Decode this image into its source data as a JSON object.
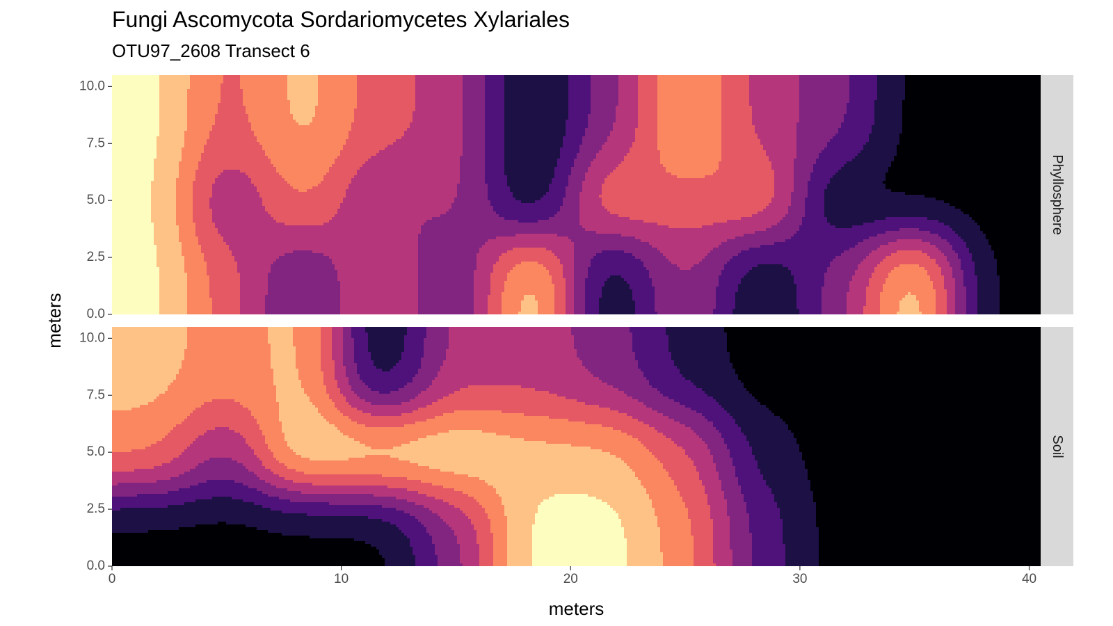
{
  "chart_data": {
    "type": "heatmap",
    "title": "Fungi Ascomycota Sordariomycetes Xylariales",
    "subtitle": "OTU97_2608 Transect 6",
    "xlabel": "meters",
    "ylabel": "meters",
    "xlim": [
      0,
      40.5
    ],
    "ylim": [
      0,
      10.5
    ],
    "x_ticks": [
      0,
      10,
      20,
      30,
      40
    ],
    "x_tick_labels": [
      "0",
      "10",
      "20",
      "30",
      "40"
    ],
    "y_ticks": [
      0,
      2.5,
      5,
      7.5,
      10
    ],
    "y_tick_labels": [
      "0.0",
      "2.5",
      "5.0",
      "7.5",
      "10.0"
    ],
    "palette": [
      "#000004",
      "#1c1044",
      "#4f127b",
      "#812581",
      "#b5367a",
      "#e55964",
      "#fb8761",
      "#fec287",
      "#fcfdbf"
    ],
    "panels": [
      {
        "name": "Phyllosphere",
        "points": [
          {
            "x": 1.7,
            "y": 8.2,
            "level": 8
          },
          {
            "x": 1.7,
            "y": 5.0,
            "level": 8
          },
          {
            "x": 1.7,
            "y": 1.7,
            "level": 8
          },
          {
            "x": 5.0,
            "y": 8.2,
            "level": 5
          },
          {
            "x": 5.0,
            "y": 5.0,
            "level": 3
          },
          {
            "x": 5.0,
            "y": 1.7,
            "level": 5
          },
          {
            "x": 8.3,
            "y": 8.2,
            "level": 7
          },
          {
            "x": 8.3,
            "y": 5.0,
            "level": 6
          },
          {
            "x": 8.3,
            "y": 1.7,
            "level": 2
          },
          {
            "x": 11.7,
            "y": 8.2,
            "level": 5
          },
          {
            "x": 11.7,
            "y": 5.0,
            "level": 3
          },
          {
            "x": 11.7,
            "y": 1.7,
            "level": 5
          },
          {
            "x": 15.0,
            "y": 8.2,
            "level": 4
          },
          {
            "x": 15.0,
            "y": 5.0,
            "level": 4
          },
          {
            "x": 15.0,
            "y": 1.7,
            "level": 2
          },
          {
            "x": 18.3,
            "y": 8.2,
            "level": 0
          },
          {
            "x": 18.3,
            "y": 5.0,
            "level": 0
          },
          {
            "x": 18.3,
            "y": 1.7,
            "level": 8
          },
          {
            "x": 21.7,
            "y": 8.2,
            "level": 3
          },
          {
            "x": 21.7,
            "y": 5.0,
            "level": 6
          },
          {
            "x": 21.7,
            "y": 1.7,
            "level": 0
          },
          {
            "x": 25.0,
            "y": 8.2,
            "level": 7
          },
          {
            "x": 25.0,
            "y": 5.0,
            "level": 5
          },
          {
            "x": 25.0,
            "y": 1.7,
            "level": 4
          },
          {
            "x": 28.3,
            "y": 8.2,
            "level": 4
          },
          {
            "x": 28.3,
            "y": 5.0,
            "level": 6
          },
          {
            "x": 28.3,
            "y": 1.7,
            "level": 0
          },
          {
            "x": 31.7,
            "y": 8.2,
            "level": 3
          },
          {
            "x": 31.7,
            "y": 5.0,
            "level": 0
          },
          {
            "x": 31.7,
            "y": 1.7,
            "level": 3
          },
          {
            "x": 35.0,
            "y": 8.2,
            "level": 0
          },
          {
            "x": 35.0,
            "y": 5.0,
            "level": 0
          },
          {
            "x": 35.0,
            "y": 1.7,
            "level": 8
          },
          {
            "x": 38.3,
            "y": 8.2,
            "level": 0
          },
          {
            "x": 38.3,
            "y": 5.0,
            "level": 0
          },
          {
            "x": 38.3,
            "y": 1.7,
            "level": 0
          }
        ]
      },
      {
        "name": "Soil",
        "points": [
          {
            "x": 1.7,
            "y": 8.2,
            "level": 7
          },
          {
            "x": 1.7,
            "y": 5.0,
            "level": 6
          },
          {
            "x": 1.7,
            "y": 1.7,
            "level": 0
          },
          {
            "x": 5.0,
            "y": 8.2,
            "level": 6
          },
          {
            "x": 5.0,
            "y": 5.0,
            "level": 3
          },
          {
            "x": 5.0,
            "y": 1.7,
            "level": 0
          },
          {
            "x": 8.3,
            "y": 8.2,
            "level": 7
          },
          {
            "x": 8.3,
            "y": 5.0,
            "level": 8
          },
          {
            "x": 8.3,
            "y": 1.7,
            "level": 0
          },
          {
            "x": 11.7,
            "y": 8.2,
            "level": 0
          },
          {
            "x": 11.7,
            "y": 5.0,
            "level": 8
          },
          {
            "x": 11.7,
            "y": 1.7,
            "level": 0
          },
          {
            "x": 15.0,
            "y": 8.2,
            "level": 4
          },
          {
            "x": 15.0,
            "y": 5.0,
            "level": 8
          },
          {
            "x": 15.0,
            "y": 1.7,
            "level": 3
          },
          {
            "x": 18.3,
            "y": 8.2,
            "level": 4
          },
          {
            "x": 18.3,
            "y": 5.0,
            "level": 7
          },
          {
            "x": 18.3,
            "y": 1.7,
            "level": 8
          },
          {
            "x": 21.7,
            "y": 8.2,
            "level": 3
          },
          {
            "x": 21.7,
            "y": 5.0,
            "level": 7
          },
          {
            "x": 21.7,
            "y": 1.7,
            "level": 8
          },
          {
            "x": 25.0,
            "y": 8.2,
            "level": 1
          },
          {
            "x": 25.0,
            "y": 5.0,
            "level": 5
          },
          {
            "x": 25.0,
            "y": 1.7,
            "level": 6
          },
          {
            "x": 28.3,
            "y": 8.2,
            "level": 0
          },
          {
            "x": 28.3,
            "y": 5.0,
            "level": 1
          },
          {
            "x": 28.3,
            "y": 1.7,
            "level": 2
          },
          {
            "x": 31.7,
            "y": 8.2,
            "level": 0
          },
          {
            "x": 31.7,
            "y": 5.0,
            "level": 0
          },
          {
            "x": 31.7,
            "y": 1.7,
            "level": 0
          },
          {
            "x": 35.0,
            "y": 8.2,
            "level": 0
          },
          {
            "x": 35.0,
            "y": 5.0,
            "level": 0
          },
          {
            "x": 35.0,
            "y": 1.7,
            "level": 0
          },
          {
            "x": 38.3,
            "y": 8.2,
            "level": 0
          },
          {
            "x": 38.3,
            "y": 5.0,
            "level": 0
          },
          {
            "x": 38.3,
            "y": 1.7,
            "level": 0
          }
        ]
      }
    ]
  }
}
